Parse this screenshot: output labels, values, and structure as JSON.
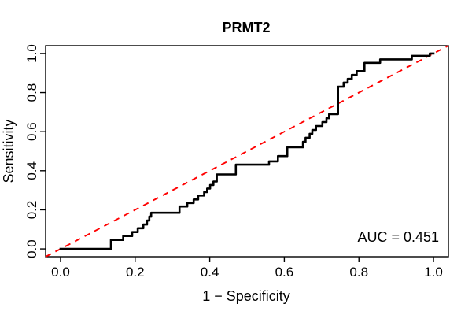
{
  "figure": {
    "background_color": "#ffffff"
  },
  "chart_data": {
    "type": "line",
    "subtype": "roc-step-curve",
    "title": "PRMT2",
    "xlabel": "1 − Specificity",
    "ylabel": "Sensitivity",
    "xlim": [
      -0.04,
      1.04
    ],
    "ylim": [
      -0.04,
      1.04
    ],
    "x_ticks": [
      0.0,
      0.2,
      0.4,
      0.6,
      0.8,
      1.0
    ],
    "x_tick_labels": [
      "0.0",
      "0.2",
      "0.4",
      "0.6",
      "0.8",
      "1.0"
    ],
    "y_ticks": [
      0.0,
      0.2,
      0.4,
      0.6,
      0.8,
      1.0
    ],
    "y_tick_labels": [
      "0.0",
      "0.2",
      "0.4",
      "0.6",
      "0.8",
      "1.0"
    ],
    "grid": false,
    "legend": "none",
    "annotation": {
      "text": "AUC = 0.451",
      "auc_value": 0.451,
      "position": "bottom-right"
    },
    "colors": {
      "curve": "#000000",
      "diagonal": "#ff0000",
      "axis": "#000000",
      "text": "#000000",
      "background": "#ffffff"
    },
    "series": [
      {
        "name": "roc-curve",
        "label": "ROC step curve",
        "color": "#000000",
        "line_width": 2.6,
        "dash": null,
        "points": [
          [
            0.0,
            0.0
          ],
          [
            0.135,
            0.0
          ],
          [
            0.135,
            0.046
          ],
          [
            0.168,
            0.046
          ],
          [
            0.168,
            0.066
          ],
          [
            0.192,
            0.066
          ],
          [
            0.192,
            0.086
          ],
          [
            0.207,
            0.086
          ],
          [
            0.207,
            0.106
          ],
          [
            0.222,
            0.106
          ],
          [
            0.222,
            0.125
          ],
          [
            0.232,
            0.125
          ],
          [
            0.232,
            0.145
          ],
          [
            0.238,
            0.145
          ],
          [
            0.238,
            0.165
          ],
          [
            0.243,
            0.165
          ],
          [
            0.243,
            0.185
          ],
          [
            0.319,
            0.185
          ],
          [
            0.319,
            0.217
          ],
          [
            0.34,
            0.217
          ],
          [
            0.34,
            0.235
          ],
          [
            0.357,
            0.235
          ],
          [
            0.357,
            0.253
          ],
          [
            0.369,
            0.253
          ],
          [
            0.369,
            0.273
          ],
          [
            0.385,
            0.273
          ],
          [
            0.385,
            0.291
          ],
          [
            0.393,
            0.291
          ],
          [
            0.393,
            0.309
          ],
          [
            0.401,
            0.309
          ],
          [
            0.401,
            0.327
          ],
          [
            0.41,
            0.327
          ],
          [
            0.41,
            0.345
          ],
          [
            0.419,
            0.345
          ],
          [
            0.419,
            0.381
          ],
          [
            0.47,
            0.381
          ],
          [
            0.47,
            0.431
          ],
          [
            0.559,
            0.431
          ],
          [
            0.559,
            0.448
          ],
          [
            0.583,
            0.448
          ],
          [
            0.583,
            0.475
          ],
          [
            0.608,
            0.475
          ],
          [
            0.608,
            0.52
          ],
          [
            0.65,
            0.52
          ],
          [
            0.65,
            0.548
          ],
          [
            0.657,
            0.548
          ],
          [
            0.657,
            0.569
          ],
          [
            0.668,
            0.569
          ],
          [
            0.668,
            0.589
          ],
          [
            0.675,
            0.589
          ],
          [
            0.675,
            0.609
          ],
          [
            0.685,
            0.609
          ],
          [
            0.685,
            0.629
          ],
          [
            0.702,
            0.629
          ],
          [
            0.702,
            0.649
          ],
          [
            0.713,
            0.649
          ],
          [
            0.713,
            0.669
          ],
          [
            0.72,
            0.669
          ],
          [
            0.72,
            0.69
          ],
          [
            0.744,
            0.69
          ],
          [
            0.744,
            0.83
          ],
          [
            0.759,
            0.83
          ],
          [
            0.759,
            0.851
          ],
          [
            0.77,
            0.851
          ],
          [
            0.77,
            0.87
          ],
          [
            0.781,
            0.87
          ],
          [
            0.781,
            0.89
          ],
          [
            0.794,
            0.89
          ],
          [
            0.794,
            0.91
          ],
          [
            0.815,
            0.91
          ],
          [
            0.815,
            0.952
          ],
          [
            0.857,
            0.952
          ],
          [
            0.857,
            0.97
          ],
          [
            0.942,
            0.97
          ],
          [
            0.942,
            0.988
          ],
          [
            0.99,
            0.988
          ],
          [
            0.99,
            1.0
          ],
          [
            1.0,
            1.0
          ]
        ]
      },
      {
        "name": "reference-diagonal",
        "label": "chance line (y = x)",
        "color": "#ff0000",
        "line_width": 1.9,
        "dash": [
          7.5,
          6.5
        ],
        "points": [
          [
            -0.04,
            -0.04
          ],
          [
            1.04,
            1.04
          ]
        ]
      }
    ]
  }
}
